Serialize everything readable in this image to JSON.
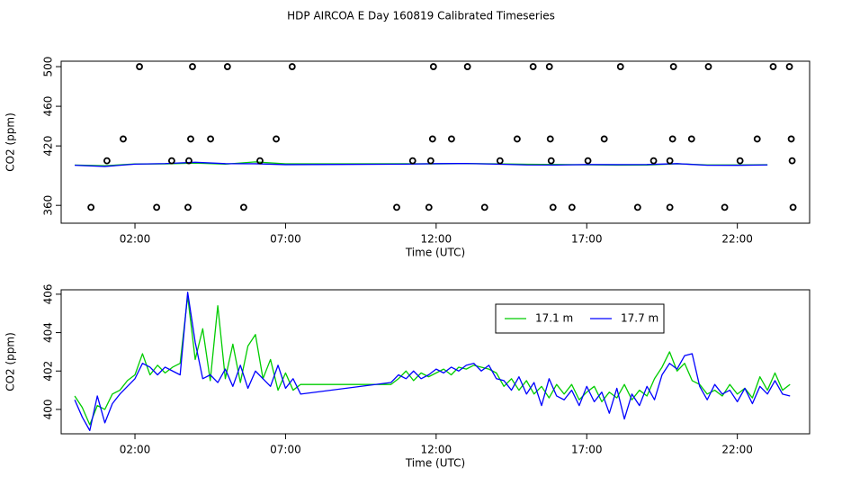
{
  "chart_data": [
    {
      "type": "line",
      "title": "HDP AIRCOA E  Day 160819  Calibrated Timeseries",
      "x_label": "Time (UTC)",
      "y_label": "CO2 (ppm)",
      "xlim": [
        -0.45,
        24.4
      ],
      "ylim": [
        342,
        505.5
      ],
      "xticks": [
        {
          "value": 2,
          "label": "02:00"
        },
        {
          "value": 7,
          "label": "07:00"
        },
        {
          "value": 12,
          "label": "12:00"
        },
        {
          "value": 17,
          "label": "17:00"
        },
        {
          "value": 22,
          "label": "22:00"
        }
      ],
      "yticks": [
        360,
        420,
        460,
        500
      ],
      "x": [
        0,
        1,
        2,
        3,
        4,
        5,
        6,
        7,
        11,
        12,
        13,
        14,
        15,
        16,
        17,
        18,
        19,
        20,
        21,
        22,
        23
      ],
      "series": [
        {
          "color": "#00cc00",
          "values": [
            400.7,
            400.0,
            401.8,
            401.9,
            402.6,
            401.6,
            403.9,
            401.9,
            402.0,
            401.9,
            402.1,
            401.9,
            401.5,
            401.3,
            400.9,
            400.6,
            400.7,
            402.0,
            400.8,
            400.8,
            401.0
          ]
        },
        {
          "color": "#0000ff",
          "values": [
            400.5,
            399.3,
            401.6,
            402.2,
            403.5,
            402.1,
            402.0,
            401.1,
            401.6,
            402.1,
            402.3,
            401.6,
            400.8,
            400.7,
            401.2,
            401.1,
            401.2,
            402.1,
            400.5,
            400.4,
            400.8
          ]
        },
        {
          "color": "#000000",
          "marker": "circle",
          "x": [
            2.15,
            3.91,
            5.07,
            7.22,
            11.91,
            13.04,
            15.22,
            15.76,
            18.12,
            19.88,
            21.04,
            23.19,
            23.73,
            1.61,
            3.85,
            4.51,
            6.69,
            11.88,
            12.51,
            14.69,
            15.79,
            17.58,
            19.85,
            20.48,
            22.66,
            23.79,
            1.07,
            3.22,
            3.79,
            6.15,
            11.22,
            11.82,
            14.12,
            15.82,
            17.04,
            19.22,
            19.76,
            22.09,
            23.82,
            0.54,
            2.72,
            3.76,
            5.61,
            10.69,
            11.76,
            13.61,
            15.88,
            16.51,
            18.69,
            19.76,
            21.58,
            23.85
          ],
          "values": [
            500,
            500,
            500,
            500,
            500,
            500,
            500,
            500,
            500,
            500,
            500,
            500,
            500,
            427,
            427,
            427,
            427,
            427,
            427,
            427,
            427,
            427,
            427,
            427,
            427,
            427,
            405,
            405,
            405,
            405,
            405,
            405,
            405,
            405,
            405,
            405,
            405,
            405,
            405,
            358,
            358,
            358,
            358,
            358,
            358,
            358,
            358,
            358,
            358,
            358,
            358,
            358
          ]
        }
      ]
    },
    {
      "type": "line",
      "x_label": "Time (UTC)",
      "y_label": "CO2 (ppm)",
      "xlim": [
        -0.45,
        24.4
      ],
      "ylim": [
        398.73,
        406.23
      ],
      "xticks": [
        {
          "value": 2,
          "label": "02:00"
        },
        {
          "value": 7,
          "label": "07:00"
        },
        {
          "value": 12,
          "label": "12:00"
        },
        {
          "value": 17,
          "label": "17:00"
        },
        {
          "value": 22,
          "label": "22:00"
        }
      ],
      "yticks": [
        400,
        402,
        404,
        406
      ],
      "legend": "top",
      "x": [
        0,
        0.25,
        0.5,
        0.75,
        1,
        1.25,
        1.5,
        1.75,
        2,
        2.25,
        2.5,
        2.75,
        3,
        3.25,
        3.5,
        3.75,
        4,
        4.25,
        4.5,
        4.75,
        5,
        5.25,
        5.5,
        5.75,
        6,
        6.25,
        6.5,
        6.75,
        7,
        7.25,
        7.5,
        10.5,
        10.75,
        11,
        11.25,
        11.5,
        11.75,
        12,
        12.25,
        12.5,
        12.75,
        13,
        13.25,
        13.5,
        13.75,
        14,
        14.25,
        14.5,
        14.75,
        15,
        15.25,
        15.5,
        15.75,
        16,
        16.25,
        16.5,
        16.75,
        17,
        17.25,
        17.5,
        17.75,
        18,
        18.25,
        18.5,
        18.75,
        19,
        19.25,
        19.5,
        19.75,
        20,
        20.25,
        20.5,
        20.75,
        21,
        21.25,
        21.5,
        21.75,
        22,
        22.25,
        22.5,
        22.75,
        23,
        23.25,
        23.5,
        23.75
      ],
      "series": [
        {
          "name": "17.1 m",
          "color": "#00cc00",
          "values": [
            400.7,
            400.1,
            399.2,
            400.2,
            400.0,
            400.8,
            401.0,
            401.5,
            401.8,
            402.9,
            401.8,
            402.3,
            401.9,
            402.2,
            402.4,
            405.9,
            402.6,
            404.2,
            401.5,
            405.4,
            401.6,
            403.4,
            401.4,
            403.3,
            403.9,
            401.6,
            402.6,
            401.0,
            401.9,
            401.0,
            401.3,
            401.3,
            401.6,
            402.0,
            401.5,
            401.9,
            401.7,
            401.9,
            402.1,
            401.8,
            402.2,
            402.1,
            402.3,
            402.2,
            402.1,
            401.9,
            401.2,
            401.6,
            401.0,
            401.5,
            400.8,
            401.2,
            400.6,
            401.3,
            400.8,
            401.3,
            400.5,
            400.9,
            401.2,
            400.4,
            400.9,
            400.6,
            401.3,
            400.5,
            401.0,
            400.7,
            401.6,
            402.2,
            403.0,
            402.0,
            402.4,
            401.5,
            401.3,
            400.8,
            401.0,
            400.7,
            401.3,
            400.8,
            401.1,
            400.6,
            401.7,
            401.0,
            401.9,
            401.0,
            401.3
          ]
        },
        {
          "name": "17.7 m",
          "color": "#0000ff",
          "values": [
            400.5,
            399.6,
            398.9,
            400.7,
            399.3,
            400.3,
            400.8,
            401.2,
            401.6,
            402.4,
            402.2,
            401.8,
            402.2,
            402.0,
            401.8,
            406.1,
            403.5,
            401.6,
            401.8,
            401.4,
            402.1,
            401.2,
            402.3,
            401.1,
            402.0,
            401.6,
            401.2,
            402.3,
            401.1,
            401.6,
            400.8,
            401.4,
            401.8,
            401.6,
            402.0,
            401.6,
            401.8,
            402.1,
            401.9,
            402.2,
            402.0,
            402.3,
            402.4,
            402.0,
            402.3,
            401.6,
            401.5,
            401.0,
            401.7,
            400.8,
            401.4,
            400.2,
            401.6,
            400.7,
            400.5,
            401.0,
            400.2,
            401.2,
            400.4,
            400.9,
            399.8,
            401.1,
            399.5,
            400.8,
            400.2,
            401.2,
            400.5,
            401.8,
            402.4,
            402.1,
            402.8,
            402.9,
            401.2,
            400.5,
            401.3,
            400.8,
            401.0,
            400.4,
            401.1,
            400.3,
            401.2,
            400.8,
            401.5,
            400.8,
            400.7
          ]
        }
      ]
    }
  ]
}
